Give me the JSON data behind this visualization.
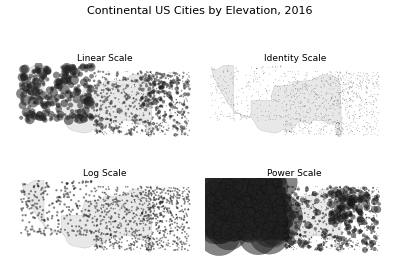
{
  "title": "Continental US Cities by Elevation, 2016",
  "subplot_titles": [
    "Linear Scale",
    "Identity Scale",
    "Log Scale",
    "Power Scale"
  ],
  "title_fontsize": 8,
  "subtitle_fontsize": 6.5,
  "background_color": "#ffffff",
  "map_facecolor": "#e8e8e8",
  "map_edgecolor": "#cccccc",
  "dot_color": "#222222",
  "dot_alpha": 0.55,
  "linear_size_max": 60,
  "identity_size": 0.3,
  "log_size_max": 3.0,
  "power_size_max": 1200,
  "n_west": 250,
  "n_east": 750,
  "seed": 42
}
